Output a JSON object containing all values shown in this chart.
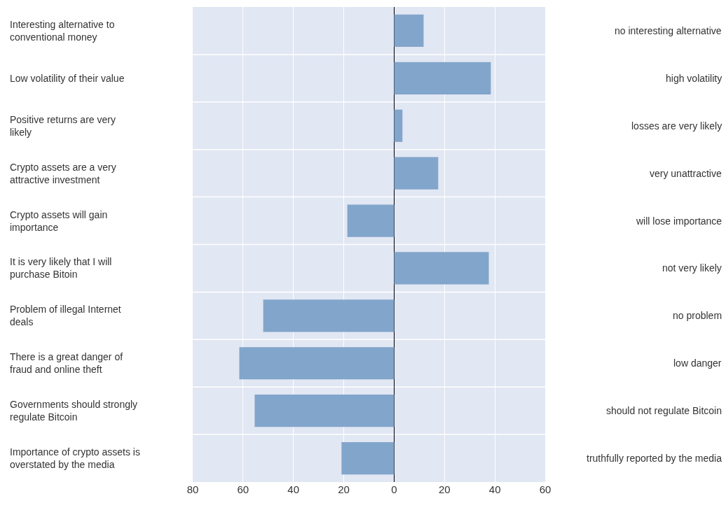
{
  "chart_data": {
    "type": "bar",
    "orientation": "horizontal",
    "categories": [
      "Interesting alternative to conventional money",
      "Low volatility of their value",
      "Positive returns are very likely",
      "Crypto assets are a very attractive investment",
      "Crypto assets will gain importance",
      "It is very likely that I will purchase Bitoin",
      "Problem of illegal Internet deals",
      "There is a great danger of fraud and online theft",
      "Governments should strongly regulate Bitcoin",
      "Importance of crypto assets is overstated by the media"
    ],
    "values": [
      11.7,
      38.4,
      3.3,
      17.5,
      -18.6,
      37.6,
      -52,
      -61.5,
      -55.4,
      -20.9
    ],
    "color": "#82a5cb",
    "annotations": [
      "no interesting alternative",
      "high volatility",
      "losses are very likely",
      "very unattractive",
      "will lose importance",
      "not very likely",
      "no problem",
      "low danger",
      "should not regulate Bitcoin",
      "truthfully reported by the media"
    ],
    "xlim": [
      -80,
      60
    ],
    "xticks": [
      {
        "value": -80,
        "label": "80"
      },
      {
        "value": -60,
        "label": "60"
      },
      {
        "value": -40,
        "label": "40"
      },
      {
        "value": -20,
        "label": "20"
      },
      0,
      20,
      40,
      60
    ],
    "grid": "x"
  }
}
